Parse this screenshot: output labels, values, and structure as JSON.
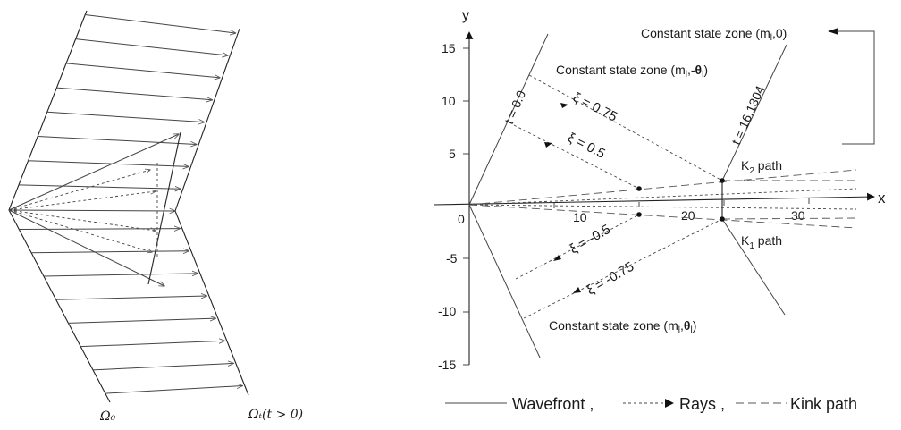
{
  "left_diagram": {
    "label_omega0": "Ω₀",
    "label_omegat": "Ωₜ(t > 0)"
  },
  "right_diagram": {
    "axis_x": "x",
    "axis_y": "y",
    "origin": "0",
    "x_ticks": [
      "10",
      "20",
      "30"
    ],
    "y_ticks": [
      "15",
      "10",
      "5",
      "-5",
      "-10",
      "-15"
    ],
    "t0_label": "t = 0.0",
    "t1_label": "t = 16.1304",
    "zone_top_right": "Constant state zone (m",
    "zone_top_right_sub": "l",
    "zone_top_right_tail": ",0)",
    "zone_upper": "Constant state zone (m",
    "zone_upper_sub": "l",
    "zone_upper_mid": ",-",
    "zone_upper_theta": "θ",
    "zone_upper_tail": ")",
    "zone_lower": "Constant state zone (m",
    "zone_lower_sub": "l",
    "zone_lower_mid": ",",
    "zone_lower_theta": "θ",
    "zone_lower_tail": ")",
    "xi_1": "ξ = 0.75",
    "xi_2": "ξ = 0.5",
    "xi_3": "ξ = -0.5",
    "xi_4": "ξ = -0.75",
    "k2": "K",
    "k2_sub": "2",
    "k2_tail": " path",
    "k1": "K",
    "k1_sub": "1",
    "k1_tail": "  path"
  },
  "legend": {
    "wavefront": "Wavefront ,",
    "rays": "Rays ,",
    "kink": "Kink path"
  }
}
